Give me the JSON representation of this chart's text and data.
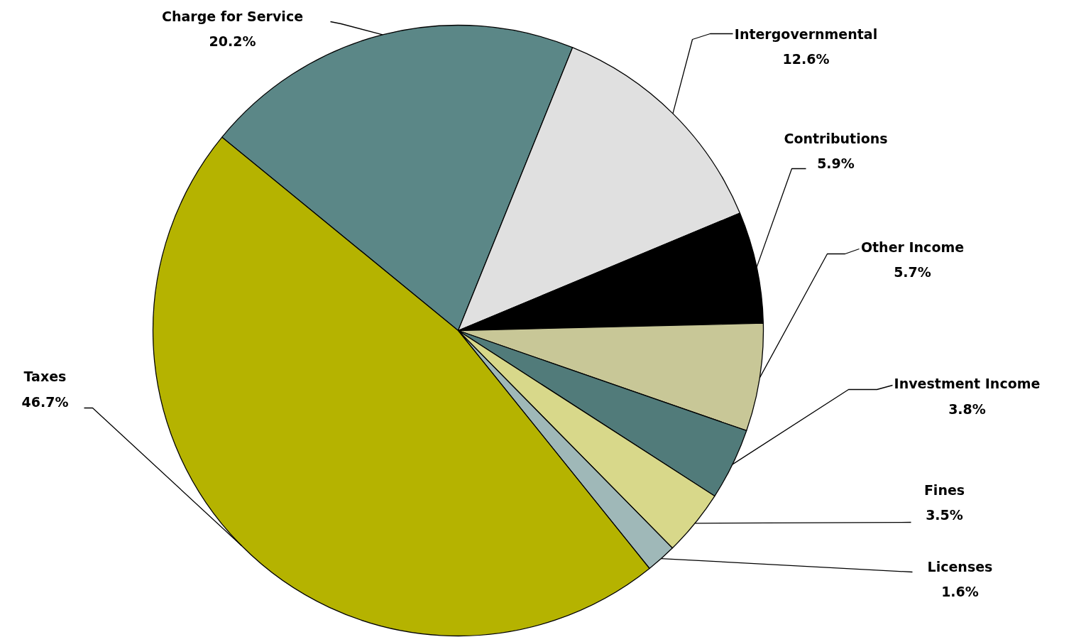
{
  "chart_data": {
    "type": "pie",
    "categories": [
      "Charge for Service",
      "Intergovernmental",
      "Contributions",
      "Other Income",
      "Investment Income",
      "Fines",
      "Licenses",
      "Taxes"
    ],
    "values": [
      20.2,
      12.6,
      5.9,
      5.7,
      3.8,
      3.5,
      1.6,
      46.7
    ],
    "value_labels": [
      "20.2%",
      "12.6%",
      "5.9%",
      "5.7%",
      "3.8%",
      "3.5%",
      "1.6%",
      "46.7%"
    ],
    "colors": [
      "#5b8787",
      "#e0e0e0",
      "#000000",
      "#c8c797",
      "#517b7a",
      "#d8d88a",
      "#9fb8b8",
      "#b5b300"
    ]
  }
}
